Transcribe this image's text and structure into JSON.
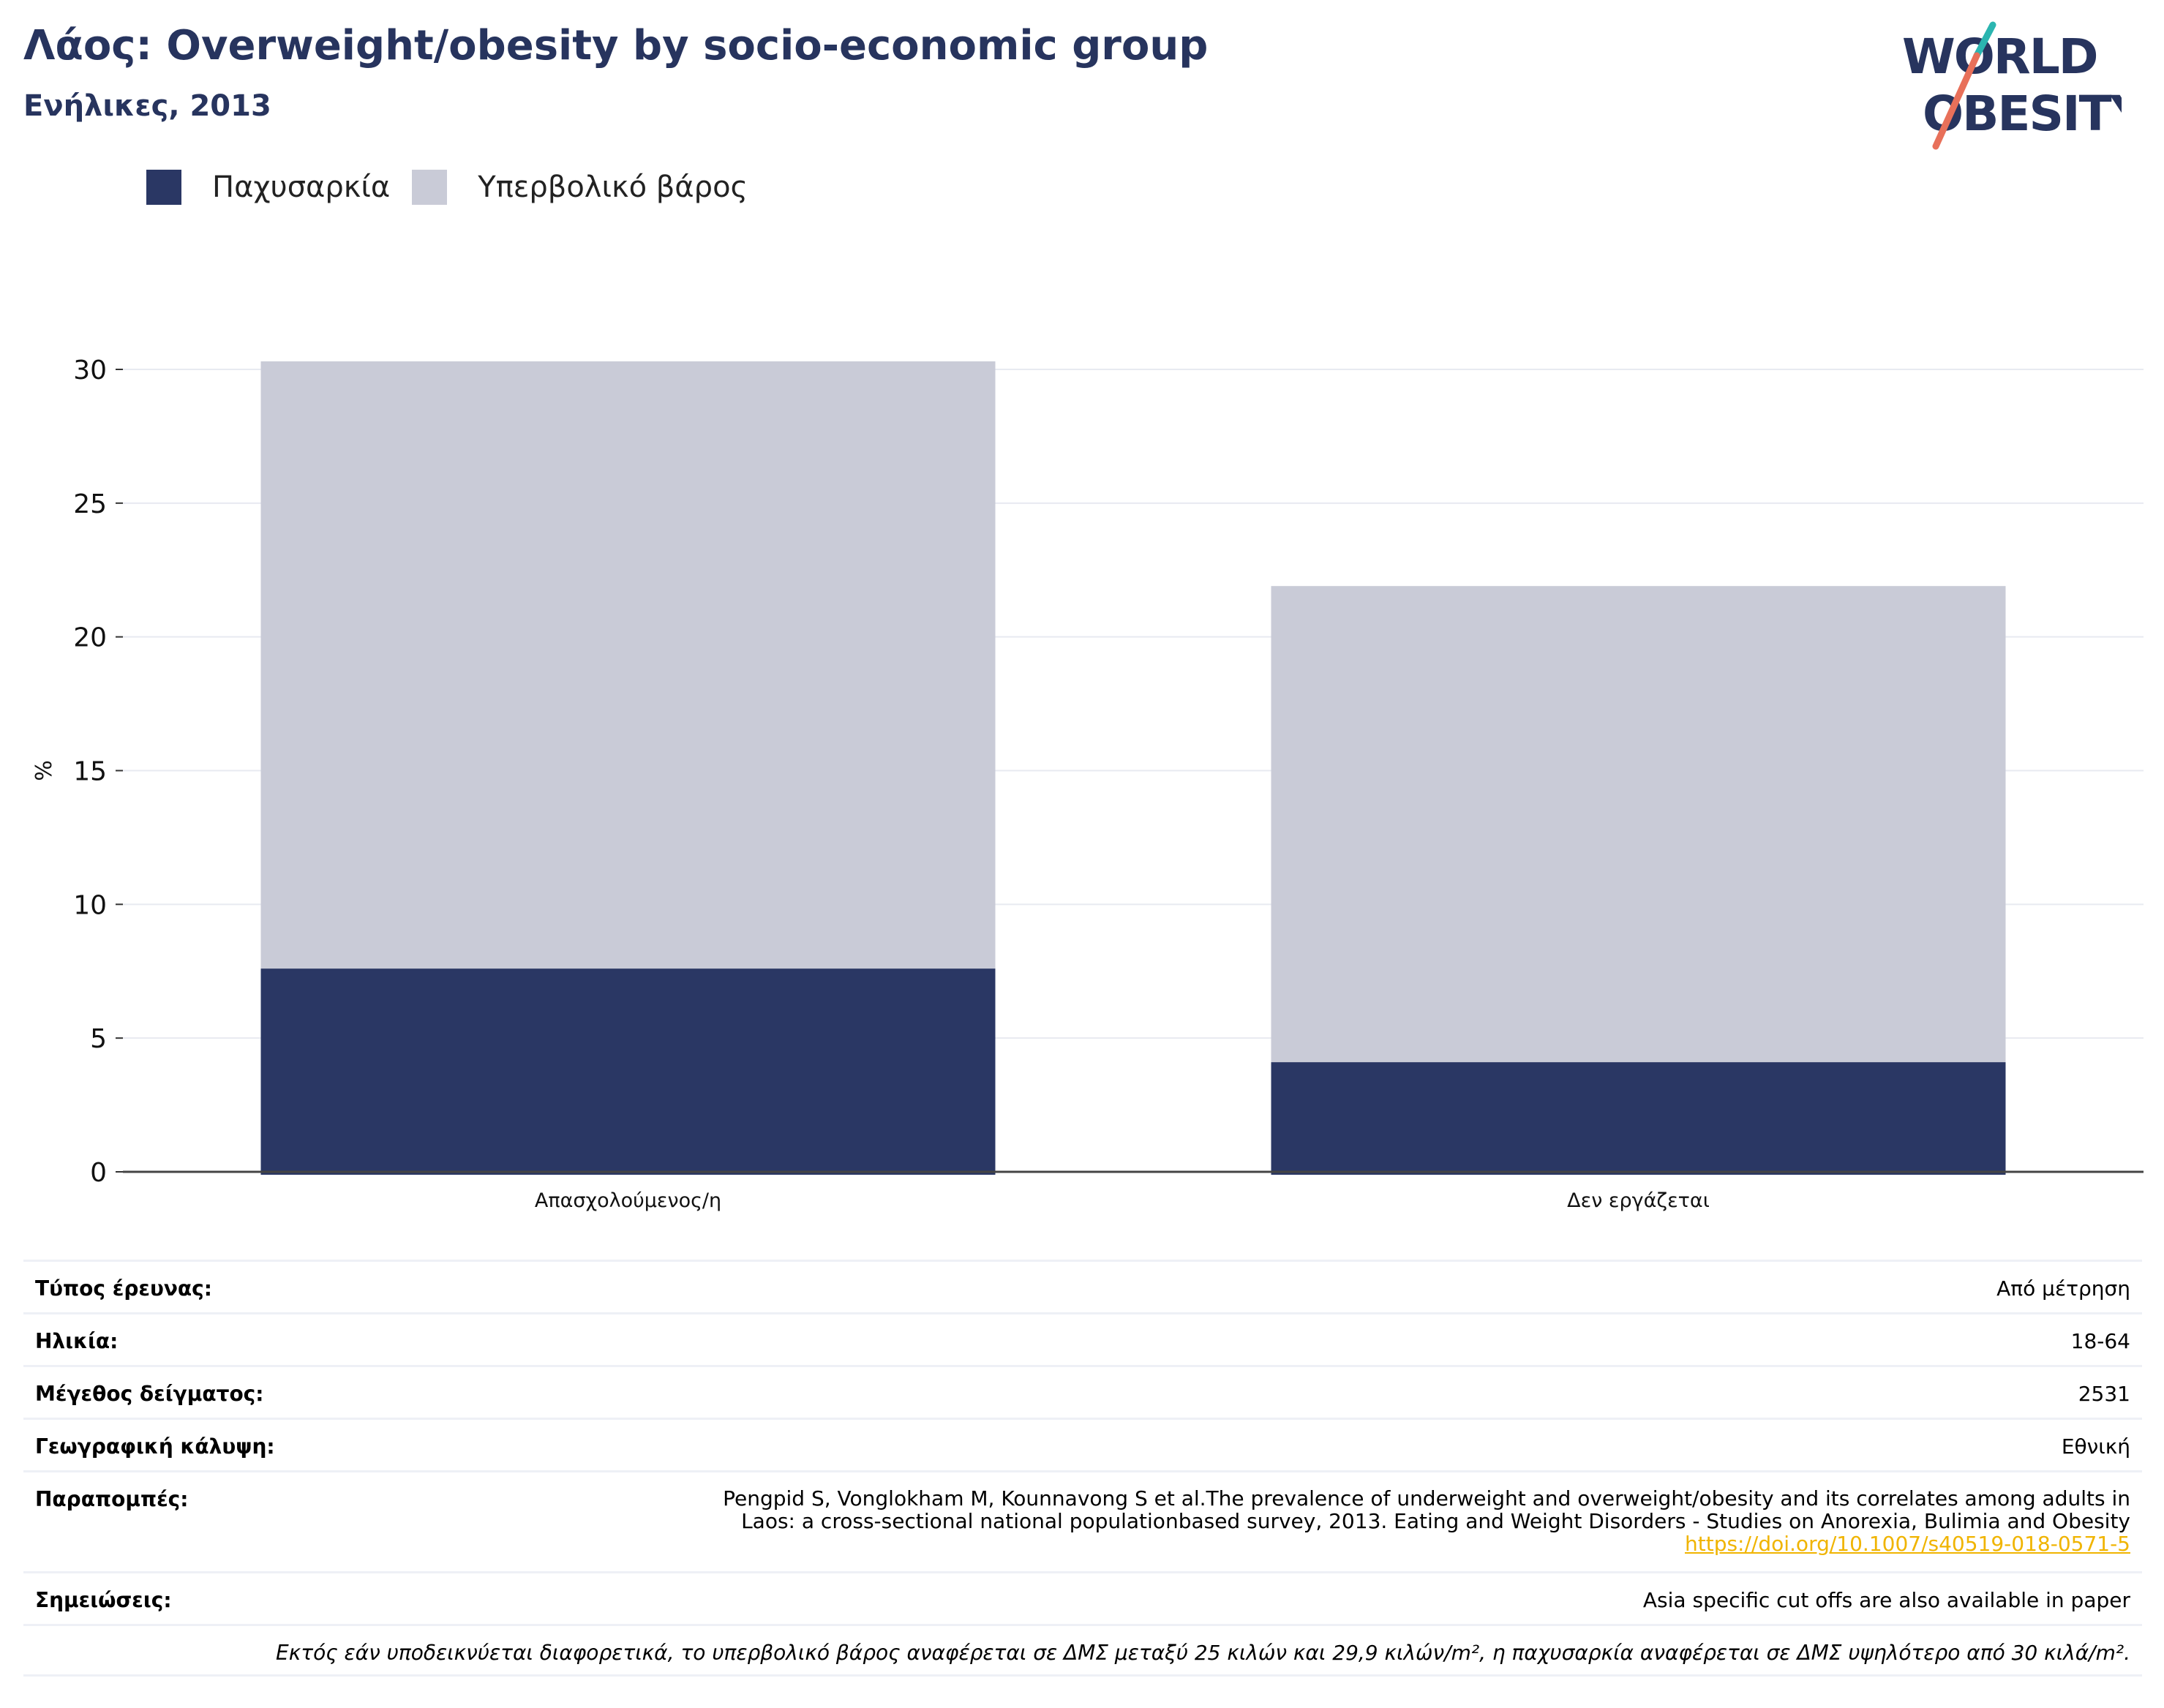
{
  "header": {
    "title": "Λάος: Overweight/obesity by socio-economic group",
    "subtitle": "Ενήλικες, 2013"
  },
  "logo": {
    "line1": "WORLD",
    "line2": "OBESITY",
    "colors": {
      "text": "#27345e",
      "slash_top": "#2bb5b0",
      "slash_bottom": "#e8705a"
    }
  },
  "legend": [
    {
      "label": "Παχυσαρκία",
      "color": "#2a3764"
    },
    {
      "label": "Υπερβολικό βάρος",
      "color": "#c9cbd7"
    }
  ],
  "chart_data": {
    "type": "bar",
    "stacked": true,
    "categories": [
      "Απασχολούμενος/η",
      "Δεν εργάζεται"
    ],
    "series": [
      {
        "name": "Παχυσαρκία",
        "values": [
          7.6,
          4.1
        ],
        "color": "#2a3764"
      },
      {
        "name": "Υπερβολικό βάρος",
        "values": [
          22.7,
          17.8
        ],
        "color": "#c9cbd7"
      }
    ],
    "ylabel": "%",
    "ylim": [
      0,
      30
    ],
    "yticks": [
      0,
      5,
      10,
      15,
      20,
      25,
      30
    ],
    "grid": true,
    "legend_position": "top-left"
  },
  "meta": {
    "survey_type": {
      "label": "Τύπος έρευνας:",
      "value": "Από μέτρηση"
    },
    "age": {
      "label": "Ηλικία:",
      "value": "18-64"
    },
    "sample_size": {
      "label": "Μέγεθος δείγματος:",
      "value": "2531"
    },
    "coverage": {
      "label": "Γεωγραφική κάλυψη:",
      "value": "Εθνική"
    },
    "references": {
      "label": "Παραπομπές:",
      "line1": "Pengpid S, Vonglokham M, Kounnavong S et al.The prevalence of underweight and overweight/obesity and its correlates among adults in",
      "line2": "Laos: a cross-sectional national populationbased survey, 2013. Eating and Weight Disorders - Studies on Anorexia, Bulimia and Obesity",
      "link": "https://doi.org/10.1007/s40519-018-0571-5"
    },
    "notes": {
      "label": "Σημειώσεις:",
      "value": "Asia specific cut offs are also available in paper"
    },
    "footnote": "Εκτός εάν υποδεικνύεται διαφορετικά, το υπερβολικό βάρος αναφέρεται σε ΔΜΣ μεταξύ 25 κιλών και 29,9 κιλών/m², η παχυσαρκία αναφέρεται σε ΔΜΣ υψηλότερο από 30 κιλά/m²."
  }
}
